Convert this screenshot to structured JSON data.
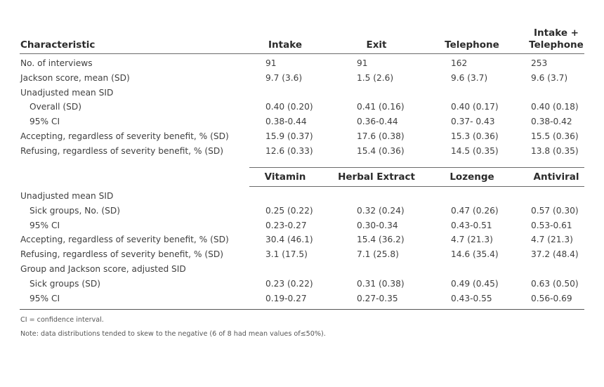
{
  "table": {
    "header1": {
      "characteristic": "Characteristic",
      "col1": "Intake",
      "col2": "Exit",
      "col3": "Telephone",
      "col4_line1": "Intake +",
      "col4_line2": "Telephone"
    },
    "rows1": [
      {
        "label": "No. of interviews",
        "indent": false,
        "values": [
          "91",
          "91",
          "162",
          "253"
        ]
      },
      {
        "label": "Jackson score, mean (SD)",
        "indent": false,
        "values": [
          "9.7 (3.6)",
          "1.5 (2.6)",
          "9.6 (3.7)",
          "9.6 (3.7)"
        ]
      },
      {
        "label": "Unadjusted mean SID",
        "indent": false,
        "values": [
          "",
          "",
          "",
          ""
        ]
      },
      {
        "label": "Overall (SD)",
        "indent": true,
        "values": [
          "0.40 (0.20)",
          "0.41 (0.16)",
          "0.40 (0.17)",
          "0.40 (0.18)"
        ]
      },
      {
        "label": "95% CI",
        "indent": true,
        "values": [
          "0.38-0.44",
          "0.36-0.44",
          "0.37- 0.43",
          "0.38-0.42"
        ]
      },
      {
        "label": "Accepting, regardless of severity benefit, % (SD)",
        "indent": false,
        "values": [
          "15.9 (0.37)",
          "17.6 (0.38)",
          "15.3 (0.36)",
          "15.5 (0.36)"
        ]
      },
      {
        "label": "Refusing, regardless of severity benefit, % (SD)",
        "indent": false,
        "values": [
          "12.6 (0.33)",
          "15.4 (0.36)",
          "14.5 (0.35)",
          "13.8 (0.35)"
        ]
      }
    ],
    "header2": {
      "col1": "Vitamin",
      "col2": "Herbal Extract",
      "col3": "Lozenge",
      "col4": "Antiviral"
    },
    "rows2": [
      {
        "label": "Unadjusted mean SID",
        "indent": false,
        "values": [
          "",
          "",
          "",
          ""
        ]
      },
      {
        "label": "Sick groups, No. (SD)",
        "indent": true,
        "values": [
          "0.25 (0.22)",
          "0.32 (0.24)",
          "0.47 (0.26)",
          "0.57 (0.30)"
        ]
      },
      {
        "label": "95% CI",
        "indent": true,
        "values": [
          "0.23-0.27",
          "0.30-0.34",
          "0.43-0.51",
          "0.53-0.61"
        ]
      },
      {
        "label": "Accepting, regardless of severity benefit, % (SD)",
        "indent": false,
        "values": [
          "30.4 (46.1)",
          "15.4 (36.2)",
          "4.7 (21.3)",
          "4.7 (21.3)"
        ]
      },
      {
        "label": "Refusing, regardless of severity benefit, % (SD)",
        "indent": false,
        "values": [
          "3.1 (17.5)",
          "7.1 (25.8)",
          "14.6 (35.4)",
          "37.2 (48.4)"
        ]
      },
      {
        "label": "Group and Jackson score, adjusted SID",
        "indent": false,
        "values": [
          "",
          "",
          "",
          ""
        ]
      },
      {
        "label": "Sick groups (SD)",
        "indent": true,
        "values": [
          "0.23 (0.22)",
          "0.31 (0.38)",
          "0.49 (0.45)",
          "0.63 (0.50)"
        ]
      },
      {
        "label": "95% CI",
        "indent": true,
        "values": [
          "0.19-0.27",
          "0.27-0.35",
          "0.43-0.55",
          "0.56-0.69"
        ]
      }
    ]
  },
  "footnotes": {
    "ci": "CI = confidence interval.",
    "note": "Note: data distributions tended to skew to the negative (6 of 8 had mean values of≤50%)."
  }
}
